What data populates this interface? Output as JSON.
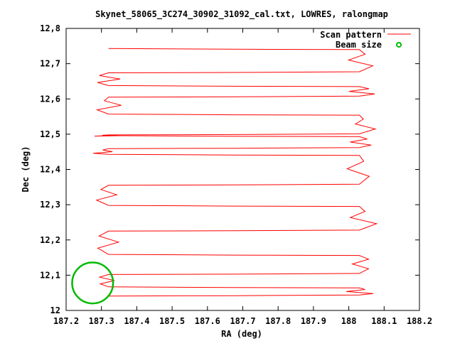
{
  "chart_data": {
    "type": "line",
    "title": "Skynet_58065_3C274_30902_31092_cal.txt, LOWRES, ralongmap",
    "xlabel": "RA (deg)",
    "ylabel": "Dec (deg)",
    "xlim": [
      187.2,
      188.2
    ],
    "ylim": [
      12.0,
      12.8
    ],
    "xticks": [
      "187.2",
      "187.3",
      "187.4",
      "187.5",
      "187.6",
      "187.7",
      "187.8",
      "187.9",
      "188",
      "188.1",
      "188.2"
    ],
    "yticks": [
      "12",
      "12,1",
      "12,2",
      "12,3",
      "12,4",
      "12,5",
      "12,6",
      "12,7",
      "12,8"
    ],
    "legend_position": "top-right",
    "grid": false,
    "colors": {
      "scan": "#ff0000",
      "beam": "#00bb00",
      "axes": "#000000"
    },
    "series": [
      {
        "name": "Scan pattern",
        "kind": "line",
        "color": "#ff0000"
      },
      {
        "name": "Beam size",
        "kind": "circle",
        "color": "#00bb00"
      }
    ],
    "scan_rows_dec": [
      12.041,
      12.064,
      12.102,
      12.156,
      12.225,
      12.295,
      12.355,
      12.44,
      12.459,
      12.493,
      12.498,
      12.554,
      12.605,
      12.635,
      12.674,
      12.74
    ],
    "row_start_ra": 187.32,
    "row_end_ra": 188.03,
    "beam": {
      "center_ra": 187.275,
      "center_dec": 12.078,
      "radius_deg": 0.058
    }
  }
}
